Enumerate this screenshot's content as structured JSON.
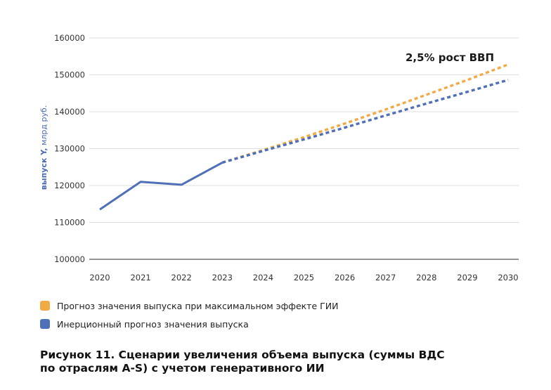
{
  "chart_data": {
    "type": "line",
    "ylabel_bold": "выпуск Y,",
    "ylabel_rest": " млрд руб.",
    "ylim": [
      100000,
      160000
    ],
    "yticks": [
      100000,
      110000,
      120000,
      130000,
      140000,
      150000,
      160000
    ],
    "x": [
      2020,
      2021,
      2022,
      2023,
      2024,
      2025,
      2026,
      2027,
      2028,
      2029,
      2030
    ],
    "grid": true,
    "annotation": "2,5% рост ВВП",
    "series": [
      {
        "name": "Прогноз значения выпуска при максимальном эффекте ГИИ",
        "color": "#f2aa45",
        "style": "dotted",
        "points": [
          [
            2023,
            126200
          ],
          [
            2024,
            129600
          ],
          [
            2025,
            133100
          ],
          [
            2026,
            136800
          ],
          [
            2027,
            140600
          ],
          [
            2028,
            144600
          ],
          [
            2029,
            148600
          ],
          [
            2030,
            152800
          ]
        ]
      },
      {
        "name": "Инерционный прогноз значения выпуска",
        "color": "#4f6fb8",
        "style": "dotted",
        "points": [
          [
            2023,
            126200
          ],
          [
            2024,
            129400
          ],
          [
            2025,
            132500
          ],
          [
            2026,
            135700
          ],
          [
            2027,
            139000
          ],
          [
            2028,
            142200
          ],
          [
            2029,
            145400
          ],
          [
            2030,
            148600
          ]
        ]
      },
      {
        "name": "",
        "color": "#4f6fb8",
        "style": "solid",
        "points": [
          [
            2020,
            113500
          ],
          [
            2021,
            121000
          ],
          [
            2022,
            120200
          ],
          [
            2023,
            126200
          ]
        ]
      }
    ]
  },
  "legend": [
    {
      "label": "Прогноз значения выпуска при максимальном эффекте ГИИ",
      "color": "#f2aa45"
    },
    {
      "label": "Инерционный прогноз значения выпуска",
      "color": "#4f6fb8"
    }
  ],
  "caption": {
    "line1": "Рисунок 11. Сценарии увеличения объема выпуска (суммы ВДС",
    "line2": "по отраслям A-S) с учетом генеративного ИИ"
  }
}
